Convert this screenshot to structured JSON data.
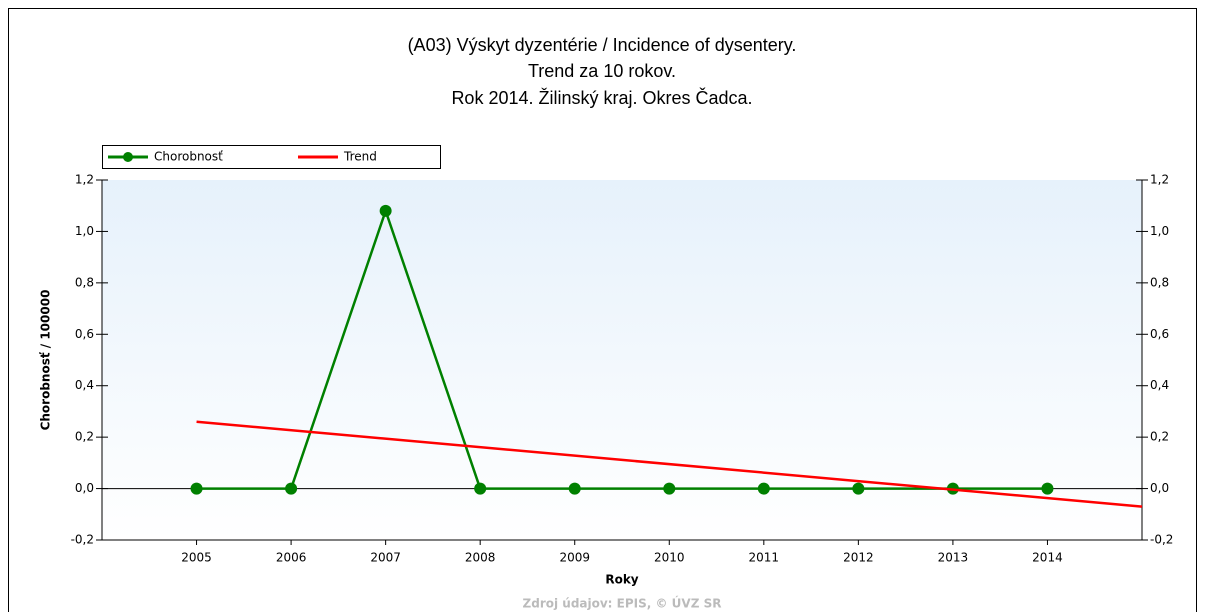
{
  "chart_data": {
    "type": "line",
    "title": [
      "(A03) Výskyt dyzentérie / Incidence of dysentery.",
      "Trend za 10 rokov.",
      "Rok 2014. Žilinský kraj. Okres Čadca."
    ],
    "x_label": "Roky",
    "y_label": "Chorobnosť / 100000",
    "source": "Zdroj údajov: EPIS, © ÚVZ SR",
    "series": [
      {
        "name": "Chorobnosť",
        "color": "#008000",
        "x": [
          2005,
          2006,
          2007,
          2008,
          2009,
          2010,
          2011,
          2012,
          2013,
          2014
        ],
        "values": [
          0,
          0,
          1.08,
          0,
          0,
          0,
          0,
          0,
          0,
          0
        ]
      },
      {
        "name": "Trend",
        "color": "#ff0000",
        "x": [
          2005,
          2015
        ],
        "values": [
          0.26,
          -0.07
        ]
      }
    ],
    "xlim": [
      2004,
      2015
    ],
    "xticks": [
      2005,
      2006,
      2007,
      2008,
      2009,
      2010,
      2011,
      2012,
      2013,
      2014
    ],
    "ylim": [
      -0.2,
      1.2
    ],
    "yticks": [
      {
        "value": -0.2,
        "label": "-0,2"
      },
      {
        "value": 0,
        "label": "0,0"
      },
      {
        "value": 0.2,
        "label": "0,2"
      },
      {
        "value": 0.4,
        "label": "0,4"
      },
      {
        "value": 0.6,
        "label": "0,6"
      },
      {
        "value": 0.8,
        "label": "0,8"
      },
      {
        "value": 1.0,
        "label": "1,0"
      },
      {
        "value": 1.2,
        "label": "1,2"
      }
    ],
    "legend": "top-left"
  }
}
